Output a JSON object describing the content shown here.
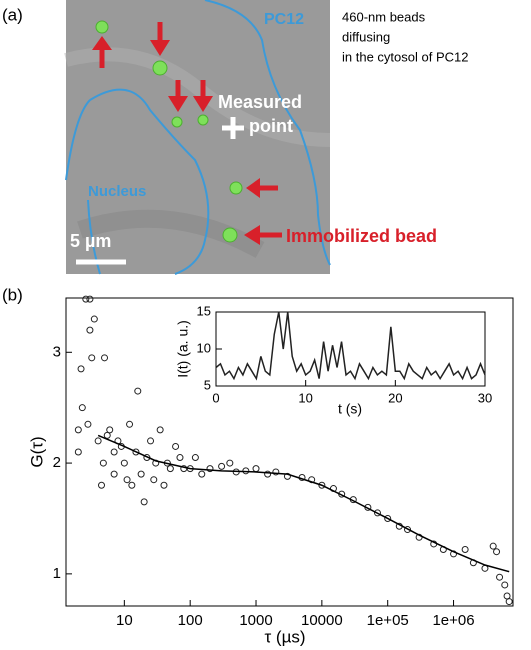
{
  "panel_a": {
    "label": "(a)",
    "cell_label": "PC12",
    "caption": [
      "460-nm beads",
      "diffusing",
      "in the cytosol of PC12"
    ],
    "measured_label": [
      "Measured",
      "point"
    ],
    "nucleus_label": "Nucleus",
    "scale_label": "5 µm",
    "immobilized_label": "Immobilized bead"
  },
  "panel_b": {
    "label": "(b)"
  },
  "chart_data": [
    {
      "type": "scatter",
      "xlabel": "τ (µs)",
      "ylabel": "G(τ)",
      "xscale": "log",
      "xlim": [
        1.3,
        8000000
      ],
      "ylim": [
        0.71,
        3.49
      ],
      "xticks": [
        10,
        100,
        1000,
        10000,
        {
          "value": 100000,
          "label": "1e+05"
        },
        {
          "value": 1000000,
          "label": "1e+06"
        }
      ],
      "yticks": [
        1,
        2,
        3
      ],
      "series": [
        {
          "type": "scatter",
          "color": "#222222",
          "x": [
            2,
            2,
            2.2,
            2.3,
            2.6,
            3,
            3,
            3.2,
            3.5,
            2.8,
            4,
            4.5,
            4.8,
            5,
            5.5,
            6,
            7,
            7,
            8,
            9,
            10,
            11,
            12,
            13,
            15,
            16,
            18,
            20,
            22,
            25,
            28,
            30,
            35,
            40,
            45,
            50,
            60,
            70,
            80,
            100,
            120,
            150,
            200,
            300,
            400,
            500,
            700,
            1000,
            1500,
            2000,
            3000,
            5000,
            7000,
            10000,
            15000,
            20000,
            30000,
            50000,
            70000,
            100000,
            150000,
            200000,
            300000,
            500000,
            700000,
            1000000,
            1500000,
            2000000,
            3000000,
            4000000,
            4500000,
            5000000,
            6000000,
            6500000,
            7000000
          ],
          "values": [
            2.3,
            2.1,
            2.85,
            2.5,
            3.48,
            3.48,
            3.2,
            2.95,
            3.3,
            2.35,
            2.2,
            1.8,
            2.0,
            2.95,
            2.25,
            2.3,
            1.9,
            2.1,
            2.2,
            2.15,
            2.0,
            1.85,
            2.35,
            1.8,
            2.1,
            2.65,
            1.9,
            1.65,
            2.05,
            2.2,
            1.85,
            2.0,
            2.3,
            1.8,
            2.0,
            1.95,
            2.15,
            2.05,
            1.95,
            1.95,
            2.05,
            1.9,
            1.95,
            1.97,
            2.0,
            1.92,
            1.93,
            1.95,
            1.9,
            1.92,
            1.88,
            1.87,
            1.85,
            1.8,
            1.77,
            1.72,
            1.67,
            1.6,
            1.55,
            1.5,
            1.43,
            1.4,
            1.33,
            1.27,
            1.22,
            1.18,
            1.22,
            1.1,
            1.05,
            1.25,
            1.2,
            0.97,
            0.9,
            0.8,
            0.75
          ]
        },
        {
          "type": "line",
          "color": "#000000",
          "x": [
            4,
            10,
            30,
            100,
            300,
            1000,
            3000,
            10000,
            30000,
            100000,
            300000,
            1000000,
            3000000,
            7000000
          ],
          "values": [
            2.25,
            2.15,
            2.02,
            1.95,
            1.93,
            1.92,
            1.9,
            1.8,
            1.66,
            1.5,
            1.35,
            1.2,
            1.08,
            1.02
          ]
        }
      ]
    },
    {
      "type": "line",
      "xlabel": "t (s)",
      "ylabel": "I(t) (a. u.)",
      "color": "#222222",
      "xlim": [
        0,
        30
      ],
      "ylim": [
        5,
        15
      ],
      "xticks": [
        0,
        10,
        20,
        30
      ],
      "yticks": [
        5,
        10,
        15
      ],
      "x": [
        0,
        0.5,
        1,
        1.5,
        2,
        2.5,
        3,
        3.5,
        4,
        4.5,
        5,
        5.5,
        6,
        6.5,
        7,
        7.5,
        8,
        8.5,
        9,
        9.5,
        10,
        10.5,
        11,
        11.5,
        12,
        12.5,
        13,
        13.5,
        14,
        14.5,
        15,
        15.5,
        16,
        16.5,
        17,
        17.5,
        18,
        18.5,
        19,
        19.5,
        20,
        20.5,
        21,
        21.5,
        22,
        22.5,
        23,
        23.5,
        24,
        24.5,
        25,
        25.5,
        26,
        26.5,
        27,
        27.5,
        28,
        28.5,
        29,
        29.5,
        30
      ],
      "values": [
        7.5,
        8,
        6.5,
        7,
        6,
        7.5,
        6.5,
        8,
        7,
        6,
        9,
        7,
        6.5,
        12,
        15,
        10,
        15,
        9,
        7,
        8,
        6.5,
        7,
        8.5,
        6,
        11,
        7,
        10.5,
        7.5,
        11,
        6.5,
        7,
        6,
        8,
        7,
        6,
        7.5,
        6.5,
        7,
        6.5,
        13,
        7,
        7,
        6,
        8,
        7,
        6.5,
        6,
        7.5,
        6.5,
        7,
        6,
        7,
        8,
        6.5,
        7,
        6,
        7.5,
        6,
        6.5,
        8,
        6.5
      ]
    }
  ]
}
